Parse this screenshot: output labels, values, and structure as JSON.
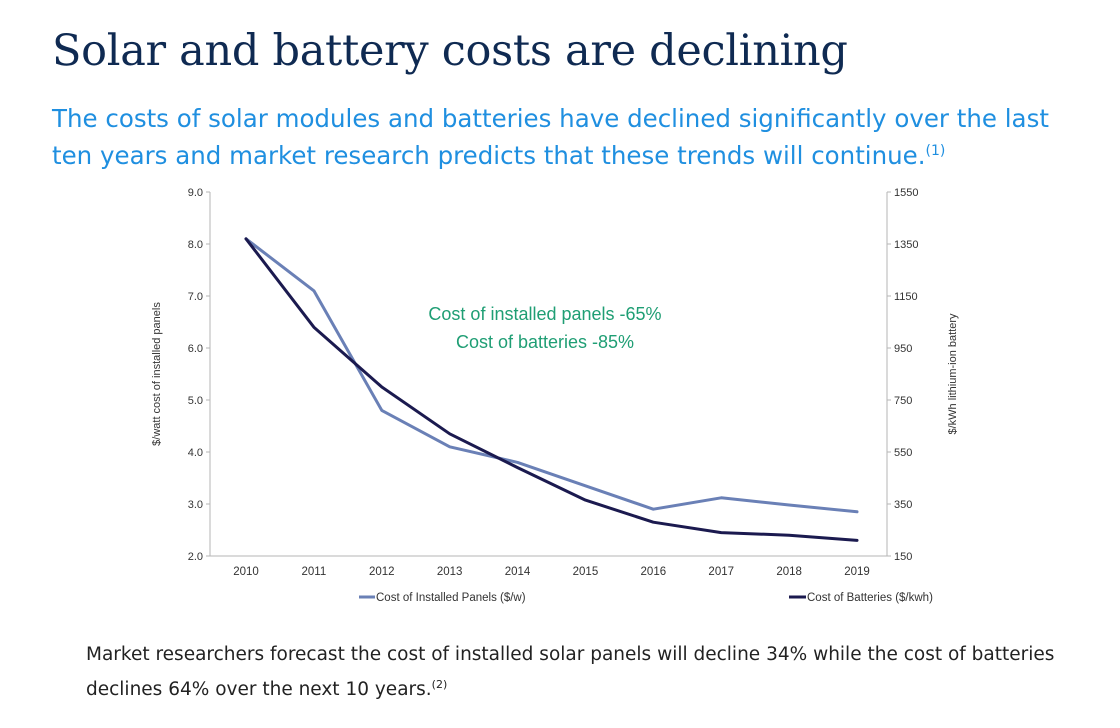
{
  "header": {
    "title": "Solar and battery costs are declining",
    "subtitle": "The costs of solar modules and batteries have declined significantly over the last ten years and market research predicts that these trends will continue.",
    "subtitle_note": "(1)"
  },
  "footer": {
    "text": "Market researchers forecast the cost of installed solar panels will decline 34% while the cost of batteries declines 64% over the next 10 years.",
    "note": "(2)"
  },
  "chart_data": {
    "type": "line",
    "x": [
      "2010",
      "2011",
      "2012",
      "2013",
      "2014",
      "2015",
      "2016",
      "2017",
      "2018",
      "2019"
    ],
    "series": [
      {
        "name": "Cost of Installed Panels ($/w)",
        "axis": "left",
        "color": "#6a80b6",
        "values": [
          8.1,
          7.1,
          4.8,
          4.1,
          3.8,
          3.35,
          2.9,
          3.12,
          2.98,
          2.85
        ]
      },
      {
        "name": "Cost of Batteries ($/kwh)",
        "axis": "right",
        "color": "#1b1a4f",
        "values": [
          1370,
          1030,
          800,
          620,
          490,
          365,
          280,
          240,
          230,
          210
        ]
      }
    ],
    "ylabel_left": "$/watt cost of installed panels",
    "ylabel_right": "$/kWh lithium-ion battery",
    "ylim_left": [
      2.0,
      9.0
    ],
    "ylim_right": [
      150,
      1550
    ],
    "yticks_left": [
      "2.0",
      "3.0",
      "4.0",
      "5.0",
      "6.0",
      "7.0",
      "8.0",
      "9.0"
    ],
    "yticks_right": [
      "150",
      "350",
      "550",
      "750",
      "950",
      "1150",
      "1350",
      "1550"
    ],
    "annotations": [
      "Cost of installed panels -65%",
      "Cost of batteries -85%"
    ],
    "annotation_color": "#1f9e74",
    "grid": false,
    "legend": "bottom"
  }
}
